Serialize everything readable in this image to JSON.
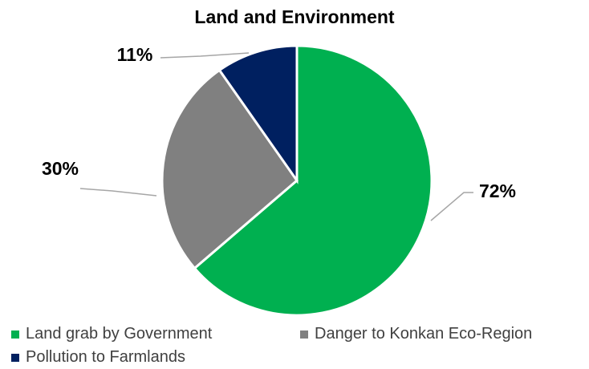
{
  "chart_data": {
    "type": "pie",
    "title": "Land and Environment",
    "slices": [
      {
        "name": "Land grab by Government",
        "value": 72,
        "label": "72%",
        "color": "#00b050"
      },
      {
        "name": "Danger to Konkan Eco-Region",
        "value": 30,
        "label": "30%",
        "color": "#808080"
      },
      {
        "name": "Pollution to Farmlands",
        "value": 11,
        "label": "11%",
        "color": "#002060"
      }
    ],
    "legend_position": "bottom"
  }
}
